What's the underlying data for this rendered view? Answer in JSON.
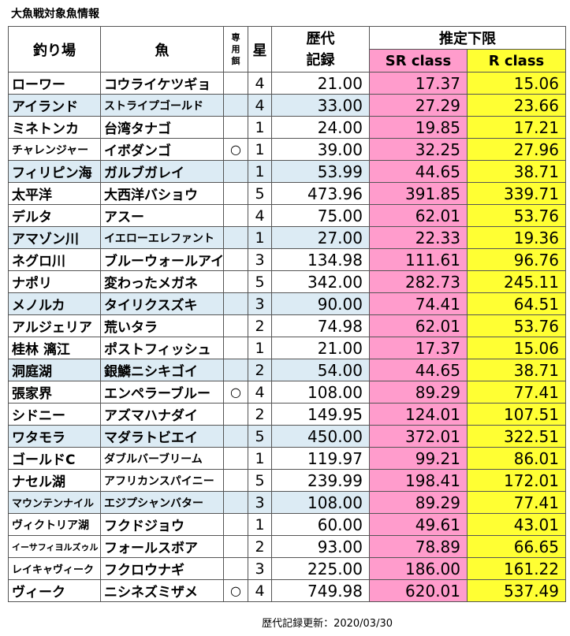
{
  "title": "大魚戦対象魚情報",
  "headers": {
    "spot": "釣り場",
    "fish": "魚",
    "bait_chars": [
      "専",
      "用",
      "餌"
    ],
    "star": "星",
    "record_line1": "歴代",
    "record_line2": "記録",
    "limit": "推定下限",
    "sr_class": "SR class",
    "r_class": "R class"
  },
  "rows": [
    {
      "spot": "ローワー",
      "fish": "コウライケツギョ",
      "bait": "",
      "star": "4",
      "record": "21.00",
      "sr": "17.37",
      "r": "15.06"
    },
    {
      "spot": "アイランド",
      "fish": "ストライプゴールド",
      "bait": "",
      "star": "4",
      "record": "33.00",
      "sr": "27.29",
      "r": "23.66"
    },
    {
      "spot": "ミネトンカ",
      "fish": "台湾タナゴ",
      "bait": "",
      "star": "1",
      "record": "24.00",
      "sr": "19.85",
      "r": "17.21"
    },
    {
      "spot": "チャレンジャー",
      "fish": "イボダンゴ",
      "bait": "○",
      "star": "1",
      "record": "39.00",
      "sr": "32.25",
      "r": "27.96"
    },
    {
      "spot": "フィリピン海",
      "fish": "ガルブガレイ",
      "bait": "",
      "star": "1",
      "record": "53.99",
      "sr": "44.65",
      "r": "38.71"
    },
    {
      "spot": "太平洋",
      "fish": "大西洋バショウ",
      "bait": "",
      "star": "5",
      "record": "473.96",
      "sr": "391.85",
      "r": "339.71"
    },
    {
      "spot": "デルタ",
      "fish": "アスー",
      "bait": "",
      "star": "4",
      "record": "75.00",
      "sr": "62.01",
      "r": "53.76"
    },
    {
      "spot": "アマゾン川",
      "fish": "イエローエレファント",
      "bait": "",
      "star": "1",
      "record": "27.00",
      "sr": "22.33",
      "r": "19.36"
    },
    {
      "spot": "ネグロ川",
      "fish": "ブルーウォールアイ",
      "bait": "",
      "star": "3",
      "record": "134.98",
      "sr": "111.61",
      "r": "96.76"
    },
    {
      "spot": "ナポリ",
      "fish": "変わったメガネ",
      "bait": "",
      "star": "5",
      "record": "342.00",
      "sr": "282.73",
      "r": "245.11"
    },
    {
      "spot": "メノルカ",
      "fish": "タイリクスズキ",
      "bait": "",
      "star": "3",
      "record": "90.00",
      "sr": "74.41",
      "r": "64.51"
    },
    {
      "spot": "アルジェリア",
      "fish": "荒いタラ",
      "bait": "",
      "star": "2",
      "record": "74.98",
      "sr": "62.01",
      "r": "53.76"
    },
    {
      "spot": "桂林 漓江",
      "fish": "ポストフィッシュ",
      "bait": "",
      "star": "1",
      "record": "21.00",
      "sr": "17.37",
      "r": "15.06"
    },
    {
      "spot": "洞庭湖",
      "fish": "銀鱗ニシキゴイ",
      "bait": "",
      "star": "2",
      "record": "54.00",
      "sr": "44.65",
      "r": "38.71"
    },
    {
      "spot": "張家界",
      "fish": "エンペラーブルー",
      "bait": "○",
      "star": "4",
      "record": "108.00",
      "sr": "89.29",
      "r": "77.41"
    },
    {
      "spot": "シドニー",
      "fish": "アズマハナダイ",
      "bait": "",
      "star": "2",
      "record": "149.95",
      "sr": "124.01",
      "r": "107.51"
    },
    {
      "spot": "ワタモラ",
      "fish": "マダラトビエイ",
      "bait": "",
      "star": "5",
      "record": "450.00",
      "sr": "372.01",
      "r": "322.51"
    },
    {
      "spot": "ゴールドC",
      "fish": "ダブルバーブリーム",
      "bait": "",
      "star": "1",
      "record": "119.97",
      "sr": "99.21",
      "r": "86.01"
    },
    {
      "spot": "ナセル湖",
      "fish": "アフリカンスパイニー",
      "bait": "",
      "star": "5",
      "record": "239.99",
      "sr": "198.41",
      "r": "172.01"
    },
    {
      "spot": "マウンテンナイル",
      "fish": "エジプシャンバター",
      "bait": "",
      "star": "3",
      "record": "108.00",
      "sr": "89.29",
      "r": "77.41"
    },
    {
      "spot": "ヴィクトリア湖",
      "fish": "フクドジョウ",
      "bait": "",
      "star": "1",
      "record": "60.00",
      "sr": "49.61",
      "r": "43.01"
    },
    {
      "spot": "イーサフィヨルズゥル",
      "fish": "フォールスボア",
      "bait": "",
      "star": "2",
      "record": "93.00",
      "sr": "78.89",
      "r": "66.65"
    },
    {
      "spot": "レイキャヴィーク",
      "fish": "フクロウナギ",
      "bait": "",
      "star": "3",
      "record": "225.00",
      "sr": "186.00",
      "r": "161.22"
    },
    {
      "spot": "ヴィーク",
      "fish": "ニシネズミザメ",
      "bait": "○",
      "star": "4",
      "record": "749.98",
      "sr": "620.01",
      "r": "537.49"
    }
  ],
  "footer": "歴代記録更新：2020/03/30",
  "colors": {
    "shade": "#dcebf4",
    "sr": "#ff9ccc",
    "r": "#ffff33"
  }
}
